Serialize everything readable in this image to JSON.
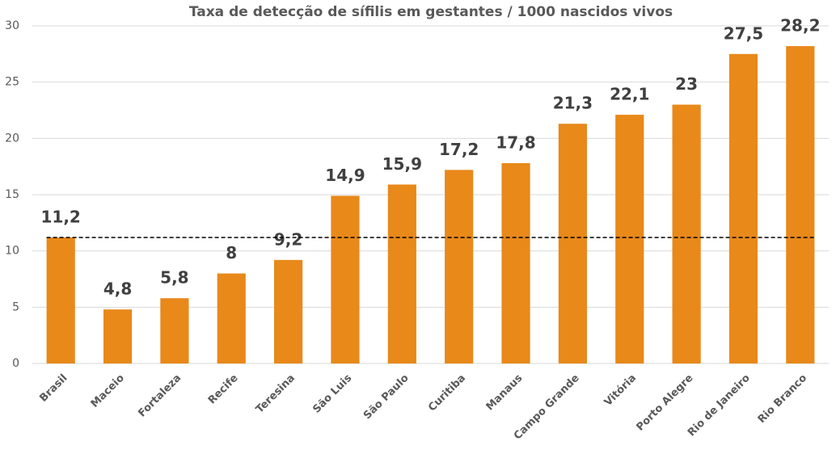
{
  "chart_data": {
    "type": "bar",
    "title": "Taxa de detecção de sífilis em gestantes / 1000 nascidos vivos",
    "categories": [
      "Brasil",
      "Maceio",
      "Fortaleza",
      "Recife",
      "Teresina",
      "São Luis",
      "São Paulo",
      "Curitiba",
      "Manaus",
      "Campo Grande",
      "Vitória",
      "Porto Alegre",
      "Rio de Janeiro",
      "Rio Branco"
    ],
    "values": [
      11.2,
      4.8,
      5.8,
      8,
      9.2,
      14.9,
      15.9,
      17.2,
      17.8,
      21.3,
      22.1,
      23,
      27.5,
      28.2
    ],
    "value_labels": [
      "11,2",
      "4,8",
      "5,8",
      "8",
      "9,2",
      "14,9",
      "15,9",
      "17,2",
      "17,8",
      "21,3",
      "22,1",
      "23",
      "27,5",
      "28,2"
    ],
    "color": "#e8891a",
    "reference_line": 11.2,
    "ylim": [
      0,
      30
    ],
    "yticks": [
      0,
      5,
      10,
      15,
      20,
      25,
      30
    ],
    "grid": true
  }
}
